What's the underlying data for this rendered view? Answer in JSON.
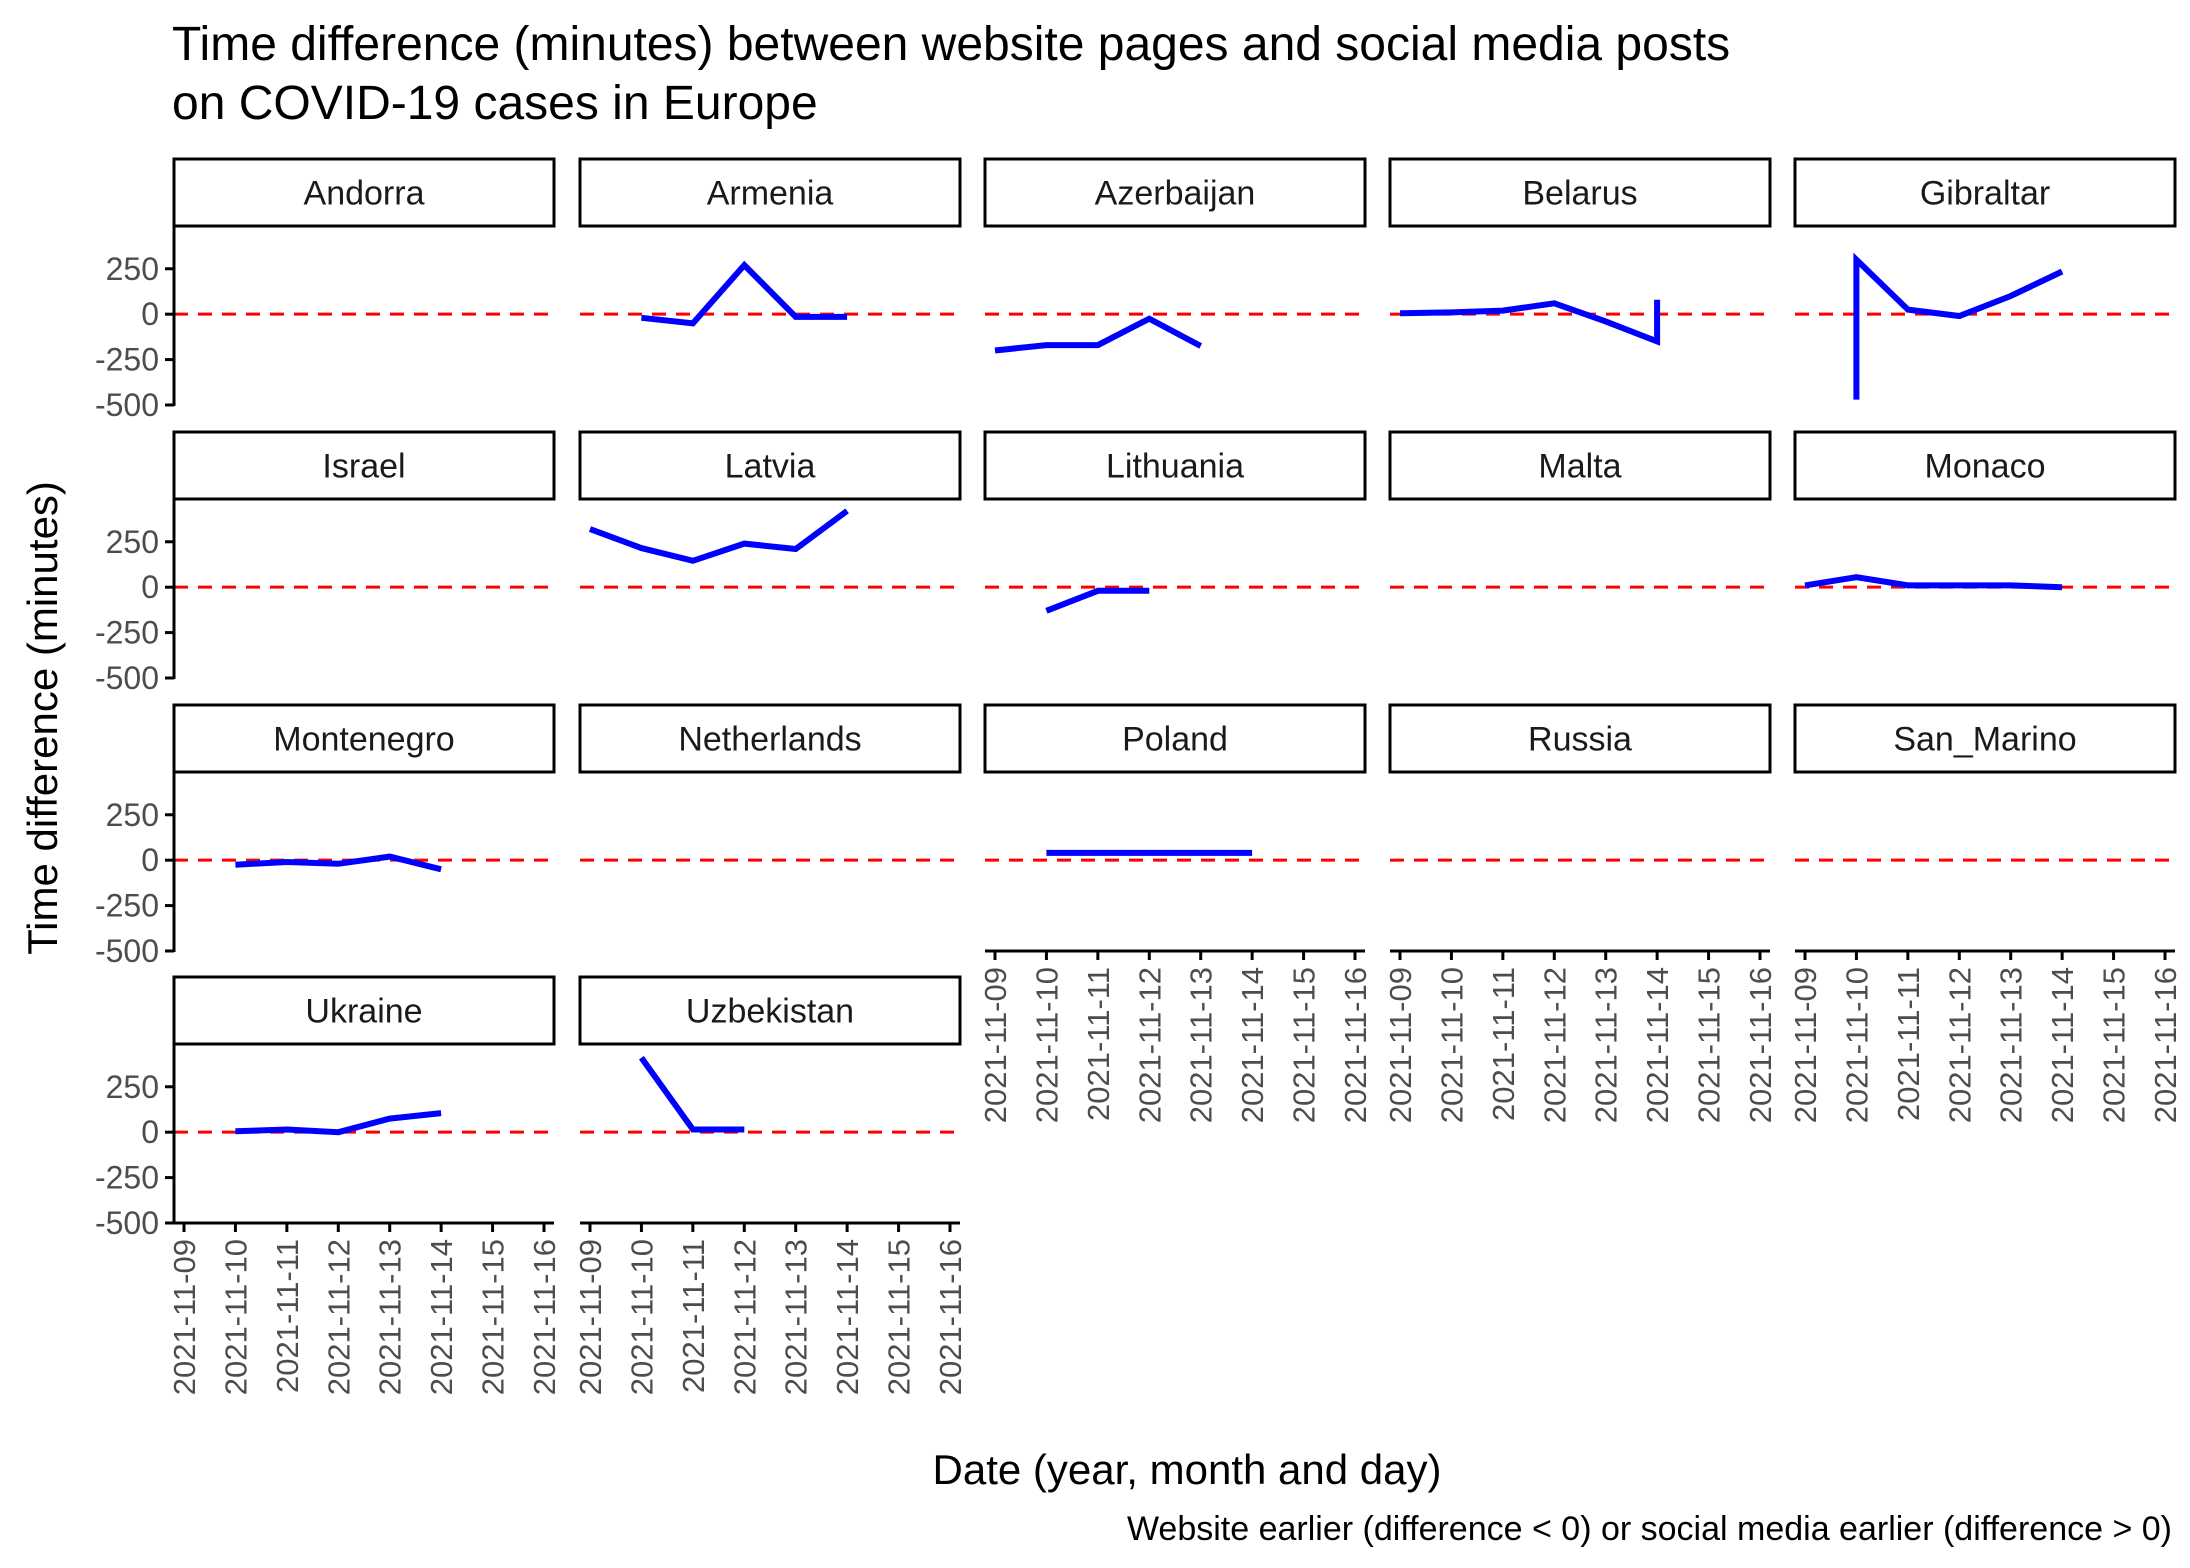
{
  "chart_data": {
    "type": "line",
    "title_lines": [
      "Time difference (minutes) between website pages and social media posts",
      "on COVID-19 cases in Europe"
    ],
    "xlabel": "Date (year, month and day)",
    "ylabel": "Time difference (minutes)",
    "caption": "Website earlier (difference < 0) or social media earlier (difference > 0)",
    "x_ticks": [
      "2021-11-09",
      "2021-11-10",
      "2021-11-11",
      "2021-11-12",
      "2021-11-13",
      "2021-11-14",
      "2021-11-15",
      "2021-11-16"
    ],
    "y_ticks": [
      250,
      0,
      -250,
      -500
    ],
    "ylim": [
      -500,
      480
    ],
    "reference_line": 0,
    "colors": {
      "series": "#0000ff",
      "reference": "#ff0000"
    },
    "facets": [
      {
        "name": "Andorra",
        "points": []
      },
      {
        "name": "Armenia",
        "points": [
          [
            "2021-11-10",
            -20
          ],
          [
            "2021-11-11",
            -50
          ],
          [
            "2021-11-12",
            270
          ],
          [
            "2021-11-13",
            -15
          ],
          [
            "2021-11-14",
            -15
          ]
        ]
      },
      {
        "name": "Azerbaijan",
        "points": [
          [
            "2021-11-09",
            -200
          ],
          [
            "2021-11-10",
            -170
          ],
          [
            "2021-11-11",
            -170
          ],
          [
            "2021-11-12",
            -25
          ],
          [
            "2021-11-13",
            -175
          ]
        ]
      },
      {
        "name": "Belarus",
        "points": [
          [
            "2021-11-09",
            5
          ],
          [
            "2021-11-10",
            10
          ],
          [
            "2021-11-11",
            20
          ],
          [
            "2021-11-12",
            60
          ],
          [
            "2021-11-13",
            -40
          ],
          [
            "2021-11-14",
            -150
          ],
          [
            "2021-11-14",
            80
          ]
        ]
      },
      {
        "name": "Gibraltar",
        "points": [
          [
            "2021-11-10",
            -470
          ],
          [
            "2021-11-10",
            300
          ],
          [
            "2021-11-11",
            25
          ],
          [
            "2021-11-12",
            -10
          ],
          [
            "2021-11-13",
            100
          ],
          [
            "2021-11-14",
            235
          ]
        ]
      },
      {
        "name": "Israel",
        "points": []
      },
      {
        "name": "Latvia",
        "points": [
          [
            "2021-11-09",
            320
          ],
          [
            "2021-11-10",
            215
          ],
          [
            "2021-11-11",
            145
          ],
          [
            "2021-11-12",
            240
          ],
          [
            "2021-11-13",
            210
          ],
          [
            "2021-11-14",
            420
          ]
        ]
      },
      {
        "name": "Lithuania",
        "points": [
          [
            "2021-11-10",
            -130
          ],
          [
            "2021-11-11",
            -20
          ],
          [
            "2021-11-12",
            -20
          ]
        ]
      },
      {
        "name": "Malta",
        "points": []
      },
      {
        "name": "Monaco",
        "points": [
          [
            "2021-11-09",
            10
          ],
          [
            "2021-11-10",
            55
          ],
          [
            "2021-11-11",
            10
          ],
          [
            "2021-11-12",
            10
          ],
          [
            "2021-11-13",
            10
          ],
          [
            "2021-11-14",
            0
          ]
        ]
      },
      {
        "name": "Montenegro",
        "points": [
          [
            "2021-11-10",
            -25
          ],
          [
            "2021-11-11",
            -10
          ],
          [
            "2021-11-12",
            -20
          ],
          [
            "2021-11-13",
            20
          ],
          [
            "2021-11-14",
            -50
          ]
        ]
      },
      {
        "name": "Netherlands",
        "points": []
      },
      {
        "name": "Poland",
        "points": [
          [
            "2021-11-10",
            40
          ],
          [
            "2021-11-11",
            40
          ],
          [
            "2021-11-12",
            40
          ],
          [
            "2021-11-13",
            40
          ],
          [
            "2021-11-14",
            40
          ]
        ]
      },
      {
        "name": "Russia",
        "points": []
      },
      {
        "name": "San_Marino",
        "points": []
      },
      {
        "name": "Ukraine",
        "points": [
          [
            "2021-11-10",
            5
          ],
          [
            "2021-11-11",
            15
          ],
          [
            "2021-11-12",
            0
          ],
          [
            "2021-11-13",
            75
          ],
          [
            "2021-11-14",
            105
          ]
        ]
      },
      {
        "name": "Uzbekistan",
        "points": [
          [
            "2021-11-10",
            410
          ],
          [
            "2021-11-11",
            15
          ],
          [
            "2021-11-12",
            15
          ]
        ]
      }
    ]
  }
}
